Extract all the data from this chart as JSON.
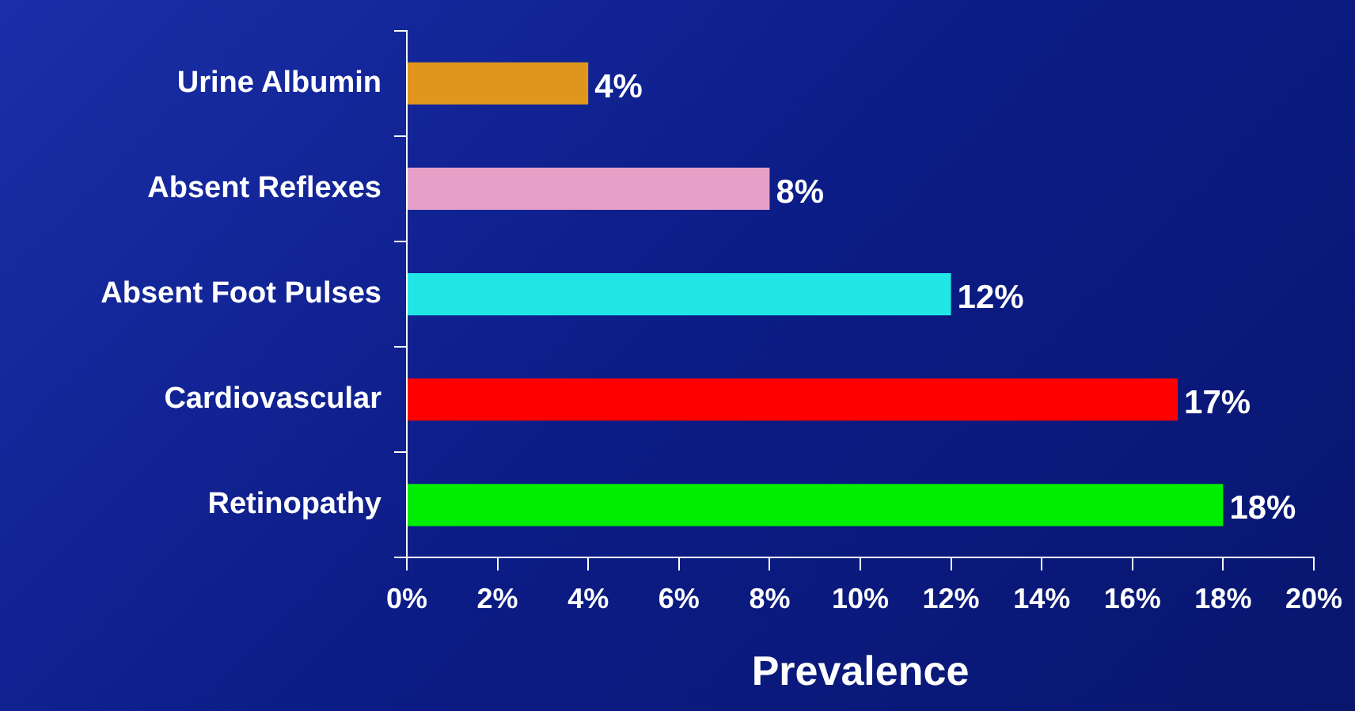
{
  "chart_data": {
    "type": "bar",
    "orientation": "horizontal",
    "xlabel": "Prevalence",
    "categories": [
      "Urine Albumin",
      "Absent Reflexes",
      "Absent Foot Pulses",
      "Cardiovascular",
      "Retinopathy"
    ],
    "values": [
      4,
      8,
      12,
      17,
      18
    ],
    "colors": [
      "#e0961c",
      "#e6a0c8",
      "#22e6e6",
      "#ff0000",
      "#00ee00"
    ],
    "value_labels": [
      "4%",
      "8%",
      "12%",
      "17%",
      "18%"
    ],
    "xlim": [
      0,
      20
    ],
    "xticks": [
      {
        "value": 0,
        "label": "0%"
      },
      {
        "value": 2,
        "label": "2%"
      },
      {
        "value": 4,
        "label": "4%"
      },
      {
        "value": 6,
        "label": "6%"
      },
      {
        "value": 8,
        "label": "8%"
      },
      {
        "value": 10,
        "label": "10%"
      },
      {
        "value": 12,
        "label": "12%"
      },
      {
        "value": 14,
        "label": "14%"
      },
      {
        "value": 16,
        "label": "16%"
      },
      {
        "value": 18,
        "label": "18%"
      },
      {
        "value": 20,
        "label": "20%"
      }
    ],
    "grid": false,
    "legend": false
  }
}
